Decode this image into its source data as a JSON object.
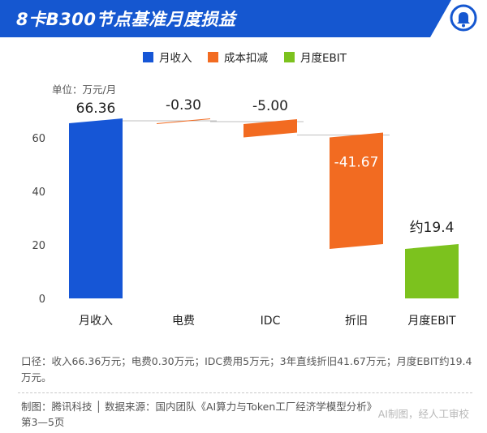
{
  "header": {
    "title": "8卡B300节点基准月度损益"
  },
  "logo": {
    "icon": "bell-icon",
    "color": "#1557d0"
  },
  "legend": [
    {
      "label": "月收入",
      "color": "#1656d6"
    },
    {
      "label": "成本扣减",
      "color": "#f26b21"
    },
    {
      "label": "月度EBIT",
      "color": "#7cc21e"
    }
  ],
  "chart_data": {
    "type": "waterfall",
    "unit_label": "单位：万元/月",
    "ylim": [
      0,
      70
    ],
    "yticks": [
      0,
      20,
      40,
      60
    ],
    "grid": false,
    "steps": [
      {
        "category": "月收入",
        "value": 66.36,
        "start": 0,
        "end": 66.36,
        "kind": "income",
        "label": "66.36"
      },
      {
        "category": "电费",
        "value": -0.3,
        "start": 66.36,
        "end": 66.06,
        "kind": "cost",
        "label": "-0.30"
      },
      {
        "category": "IDC",
        "value": -5.0,
        "start": 66.06,
        "end": 61.06,
        "kind": "cost",
        "label": "-5.00"
      },
      {
        "category": "折旧",
        "value": -41.67,
        "start": 61.06,
        "end": 19.39,
        "kind": "cost",
        "label": "-41.67"
      },
      {
        "category": "月度EBIT",
        "value": 19.4,
        "start": 0,
        "end": 19.4,
        "kind": "ebit",
        "label": "约19.4"
      }
    ]
  },
  "note": "口径：收入66.36万元；电费0.30万元；IDC费用5万元；3年直线折旧41.67万元；月度EBIT约19.4万元。",
  "footer": {
    "source": "制图：腾讯科技 │ 数据来源：国内团队《AI算力与Token工厂经济学模型分析》第3—5页",
    "watermark": "AI制图，经人工审校"
  }
}
